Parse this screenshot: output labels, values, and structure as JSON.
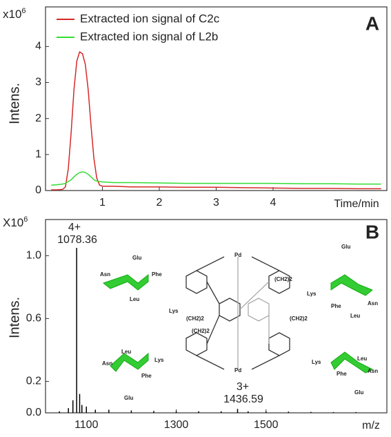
{
  "chart_data": [
    {
      "type": "line",
      "panel": "A",
      "ylabel": "Intens.",
      "y_multiplier": {
        "base": "x10",
        "exponent": "6"
      },
      "xlabel": "Time/min",
      "x": [
        0.1,
        0.2,
        0.3,
        0.35,
        0.4,
        0.45,
        0.5,
        0.55,
        0.6,
        0.65,
        0.7,
        0.75,
        0.8,
        0.85,
        0.9,
        0.95,
        1.0,
        1.2,
        1.5,
        2,
        2.5,
        3,
        3.5,
        4,
        4.5,
        5,
        5.5,
        5.9
      ],
      "series": [
        {
          "name": "Extracted ion signal of C2c",
          "color": "#d62728",
          "values": [
            0.02,
            0.02,
            0.03,
            0.1,
            0.6,
            1.6,
            2.8,
            3.6,
            3.85,
            3.8,
            3.5,
            2.8,
            1.8,
            0.9,
            0.35,
            0.15,
            0.12,
            0.12,
            0.1,
            0.1,
            0.09,
            0.09,
            0.08,
            0.07,
            0.06,
            0.06,
            0.05,
            0.05
          ]
        },
        {
          "name": "Extracted ion signal of L2b",
          "color": "#33dd33",
          "values": [
            0.15,
            0.16,
            0.18,
            0.2,
            0.25,
            0.3,
            0.38,
            0.45,
            0.5,
            0.52,
            0.5,
            0.45,
            0.38,
            0.3,
            0.26,
            0.25,
            0.24,
            0.22,
            0.22,
            0.21,
            0.2,
            0.2,
            0.2,
            0.2,
            0.19,
            0.19,
            0.18,
            0.18
          ]
        }
      ],
      "xlim": [
        0,
        6
      ],
      "ylim": [
        0,
        5.1
      ],
      "xticks": [
        1,
        2,
        3,
        4
      ],
      "yticks": [
        0,
        1,
        2,
        3,
        4
      ],
      "legend": "top-left"
    },
    {
      "type": "stick",
      "panel": "B",
      "ylabel": "Intens.",
      "y_multiplier": {
        "base": "X10",
        "exponent": "6"
      },
      "xlabel": "m/z",
      "x": [
        1040,
        1060,
        1070,
        1078.36,
        1085,
        1090,
        1100,
        1120,
        1150,
        1200,
        1250,
        1300,
        1350,
        1400,
        1436.59,
        1460,
        1500,
        1550,
        1600,
        1650,
        1700
      ],
      "values": [
        0.01,
        0.03,
        0.08,
        1.05,
        0.12,
        0.05,
        0.04,
        0.02,
        0.02,
        0.015,
        0.012,
        0.01,
        0.01,
        0.01,
        0.025,
        0.01,
        0.008,
        0.008,
        0.006,
        0.005,
        0.005
      ],
      "color": "#000000",
      "annotations": [
        "4+",
        "1078.36",
        "3+",
        "1436.59"
      ],
      "xlim": [
        1009,
        1769
      ],
      "ylim": [
        0,
        1.23
      ],
      "xticks": [
        1100,
        1300,
        1500
      ],
      "yticks": [
        {
          "value": 0,
          "label": "0.0"
        },
        0.2,
        0.6,
        {
          "value": 1,
          "label": "1.0"
        }
      ],
      "structure_labels": [
        "Glu",
        "Asn",
        "Phe",
        "Leu",
        "Lys",
        "Glu",
        "Phe",
        "Asn",
        "Leu",
        "Lys",
        "Leu",
        "Asn",
        "Lys",
        "Phe",
        "Glu",
        "Leu",
        "Asn",
        "Phe",
        "Lys",
        "Glu",
        "Pd",
        "Pd",
        "(CH2)2",
        "(CH2)2",
        "(CH2)2",
        "(CH2)2"
      ]
    }
  ]
}
